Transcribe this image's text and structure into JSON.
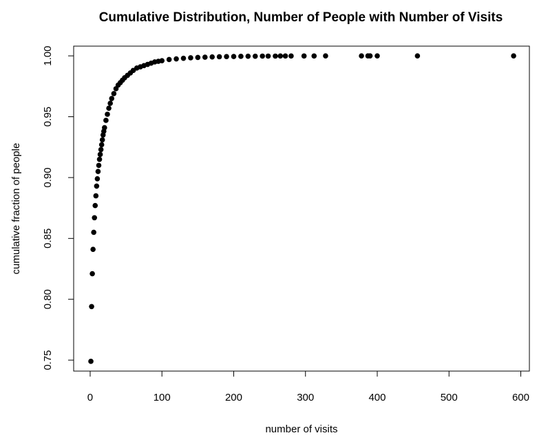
{
  "chart_data": {
    "type": "scatter",
    "title": "Cumulative Distribution, Number of People with Number of Visits",
    "xlabel": "number of visits",
    "ylabel": "cumulative fraction of people",
    "xlim": [
      -23,
      612
    ],
    "ylim": [
      0.741,
      1.008
    ],
    "x_ticks": [
      0,
      100,
      200,
      300,
      400,
      500,
      600
    ],
    "x_tick_labels": [
      "0",
      "100",
      "200",
      "300",
      "400",
      "500",
      "600"
    ],
    "y_ticks": [
      0.75,
      0.8,
      0.85,
      0.9,
      0.95,
      1.0
    ],
    "y_tick_labels": [
      "0.75",
      "0.80",
      "0.85",
      "0.90",
      "0.95",
      "1.00"
    ],
    "grid": false,
    "legend": "none",
    "marker_color": "#000000",
    "x": [
      1,
      2,
      3,
      4,
      5,
      6,
      7,
      8,
      9,
      10,
      11,
      12,
      13,
      14,
      15,
      16,
      17,
      18,
      19,
      20,
      22,
      24,
      26,
      28,
      30,
      33,
      36,
      39,
      42,
      45,
      48,
      52,
      56,
      60,
      65,
      70,
      75,
      80,
      85,
      90,
      95,
      100,
      110,
      120,
      130,
      140,
      150,
      160,
      170,
      180,
      190,
      200,
      210,
      220,
      230,
      240,
      248,
      258,
      265,
      272,
      280,
      298,
      312,
      328,
      378,
      387,
      390,
      400,
      456,
      590
    ],
    "y": [
      0.749,
      0.794,
      0.821,
      0.841,
      0.855,
      0.867,
      0.877,
      0.885,
      0.893,
      0.899,
      0.905,
      0.91,
      0.915,
      0.919,
      0.923,
      0.927,
      0.931,
      0.935,
      0.938,
      0.941,
      0.947,
      0.952,
      0.957,
      0.961,
      0.965,
      0.969,
      0.973,
      0.976,
      0.978,
      0.98,
      0.982,
      0.984,
      0.986,
      0.988,
      0.99,
      0.991,
      0.992,
      0.993,
      0.994,
      0.995,
      0.9955,
      0.996,
      0.997,
      0.9975,
      0.998,
      0.9984,
      0.9987,
      0.9989,
      0.9991,
      0.9993,
      0.9994,
      0.9995,
      0.9996,
      0.9997,
      0.9997,
      0.9998,
      0.9998,
      0.9998,
      0.9999,
      0.9999,
      0.9999,
      0.9999,
      0.9999,
      1.0,
      1.0,
      1.0,
      1.0,
      1.0,
      1.0,
      1.0
    ]
  }
}
